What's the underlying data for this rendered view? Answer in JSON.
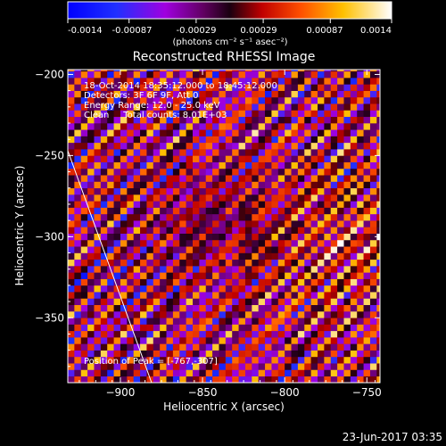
{
  "colorbar": {
    "ticks": [
      "-0.0014",
      "-0.00087",
      "-0.00029",
      "0.00029",
      "0.00087",
      "0.0014"
    ],
    "tick_values": [
      -0.0014,
      -0.00087,
      -0.00029,
      0.00029,
      0.00087,
      0.0014
    ],
    "unit_label": "(photons cm⁻² s⁻¹ asec⁻²)",
    "range": [
      -0.0014,
      0.0014
    ],
    "colormap": "rainbow-to-hot (blue-magenta-purple-red-orange-yellow-white)"
  },
  "plot": {
    "title": "Reconstructed RHESSI Image",
    "info_lines": [
      "18-Oct-2014 18:35:12.000 to 18:45:12.000",
      "Detectors: 3F 6F 9F, Att 0",
      "Energy Range: 12.0 - 25.0 keV",
      "Clean     Total counts: 8.01E+03"
    ],
    "peak_text": "Position of Peak = [-767,-307]"
  },
  "footer": {
    "timestamp": "23-Jun-2017 03:35"
  },
  "colors": {
    "background": "#000000",
    "foreground": "#ffffff"
  },
  "chart_data": {
    "type": "heatmap",
    "title": "Reconstructed RHESSI Image",
    "xlabel": "Heliocentric X (arcsec)",
    "ylabel": "Heliocentric Y (arcsec)",
    "xlim": [
      -932,
      -742
    ],
    "ylim": [
      -390,
      -197
    ],
    "x_ticks": [
      -900,
      -850,
      -800,
      -750
    ],
    "y_ticks": [
      -200,
      -250,
      -300,
      -350
    ],
    "x_tick_labels": [
      "−900",
      "−850",
      "−800",
      "−750"
    ],
    "y_tick_labels": [
      "−200",
      "−250",
      "−300",
      "−350"
    ],
    "grid": false,
    "pixel_size_arcsec": 4,
    "pattern": "diagonal fringes running lower-left to upper-right",
    "peak_position": [
      -767,
      -307
    ],
    "limb_line": [
      [
        -932,
        -247
      ],
      [
        -881,
        -390
      ]
    ]
  }
}
